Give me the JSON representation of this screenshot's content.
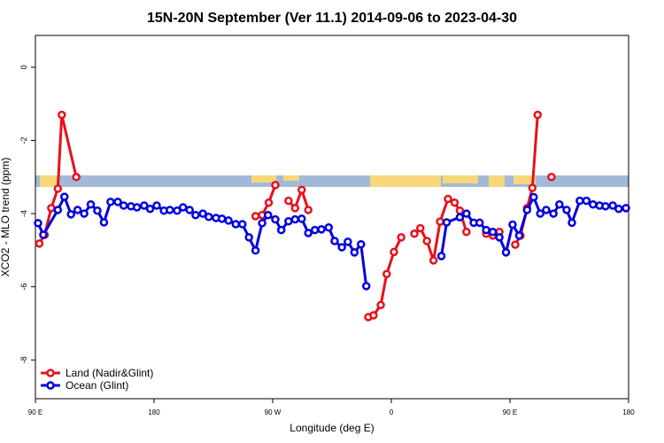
{
  "chart_data": {
    "type": "line",
    "title": "15N-20N September (Ver 11.1)   2014-09-06 to 2023-04-30",
    "x_label": "Longitude (deg E)",
    "y_label": "XCO2 - MLO trend (ppm)",
    "xlim": [
      90,
      540
    ],
    "ylim": [
      -9.06,
      0.87
    ],
    "xticks": [
      {
        "value": 90,
        "label": "90 E"
      },
      {
        "value": 180,
        "label": "180"
      },
      {
        "value": 270,
        "label": "90 W"
      },
      {
        "value": 360,
        "label": "0"
      },
      {
        "value": 450,
        "label": "90 E"
      },
      {
        "value": 540,
        "label": "180"
      }
    ],
    "yticks": [
      0,
      -2,
      -4,
      -6,
      -8
    ],
    "legend": "bottom-left",
    "series": [
      {
        "name": "Land (Nadir&Glint)",
        "color": "#e8101a",
        "x": [
          93,
          97,
          102,
          107,
          110,
          121,
          null,
          257,
          262,
          267,
          272,
          null,
          282,
          287,
          292,
          297,
          null,
          342.5,
          346.5,
          352,
          356.5,
          362,
          367.5,
          null,
          377.5,
          382,
          387,
          392,
          397,
          403,
          408,
          412,
          417,
          null,
          432,
          437,
          442,
          null,
          454,
          458,
          463,
          467,
          471,
          null,
          481.5
        ],
        "values": [
          -4.82,
          -4.58,
          -3.85,
          -3.32,
          -1.3,
          -3.0,
          null,
          -4.07,
          -4.04,
          -3.7,
          -3.22,
          null,
          -3.65,
          -3.85,
          -3.35,
          -3.9,
          null,
          -6.83,
          -6.78,
          -6.5,
          -5.65,
          -5.05,
          -4.65,
          null,
          -4.55,
          -4.4,
          -4.75,
          -5.28,
          -4.22,
          -3.6,
          -3.7,
          -3.92,
          -4.5,
          null,
          -4.55,
          -4.6,
          -4.5,
          null,
          -4.85,
          -4.6,
          -3.85,
          -3.3,
          -1.3,
          null,
          -3.0
        ]
      },
      {
        "name": "Ocean (Glint)",
        "color": "#0000e0",
        "x": [
          92,
          96,
          107,
          112,
          117,
          122,
          127,
          132,
          137,
          142,
          147,
          152.5,
          157,
          162.5,
          167,
          172.5,
          177,
          182,
          187.5,
          192,
          197.5,
          202,
          207,
          211.5,
          217,
          221.5,
          227,
          231.5,
          236.5,
          242,
          247,
          252,
          257,
          262,
          266.5,
          272,
          276.5,
          282,
          287,
          292,
          297,
          302,
          307,
          312.5,
          317,
          322.5,
          327,
          332,
          337,
          341,
          null,
          398,
          402,
          412,
          417,
          422.5,
          427,
          432,
          437,
          442,
          447,
          452,
          457,
          463,
          468,
          473,
          477.5,
          483,
          487.5,
          493,
          497,
          503,
          508,
          513,
          518,
          522.5,
          528,
          532.5,
          538
        ],
        "values": [
          -4.26,
          -4.58,
          -3.9,
          -3.54,
          -4.02,
          -3.9,
          -4.0,
          -3.75,
          -3.92,
          -4.24,
          -3.68,
          -3.68,
          -3.78,
          -3.8,
          -3.83,
          -3.78,
          -3.87,
          -3.78,
          -3.92,
          -3.9,
          -3.92,
          -3.83,
          -3.9,
          -4.04,
          -4.0,
          -4.09,
          -4.12,
          -4.14,
          -4.19,
          -4.29,
          -4.29,
          -4.65,
          -5.01,
          -4.26,
          -4.04,
          -4.16,
          -4.45,
          -4.21,
          -4.16,
          -4.14,
          -4.53,
          -4.45,
          -4.43,
          -4.38,
          -4.75,
          -4.92,
          -4.77,
          -5.06,
          -4.84,
          -5.98,
          null,
          -5.16,
          -4.24,
          -4.1,
          -4.0,
          -4.25,
          -4.25,
          -4.45,
          -4.5,
          -4.65,
          -5.06,
          -4.3,
          -4.6,
          -3.9,
          -3.55,
          -4.0,
          -3.9,
          -4.0,
          -3.75,
          -3.9,
          -4.25,
          -3.65,
          -3.65,
          -3.75,
          -3.78,
          -3.8,
          -3.78,
          -3.87,
          -3.85
        ]
      }
    ]
  }
}
